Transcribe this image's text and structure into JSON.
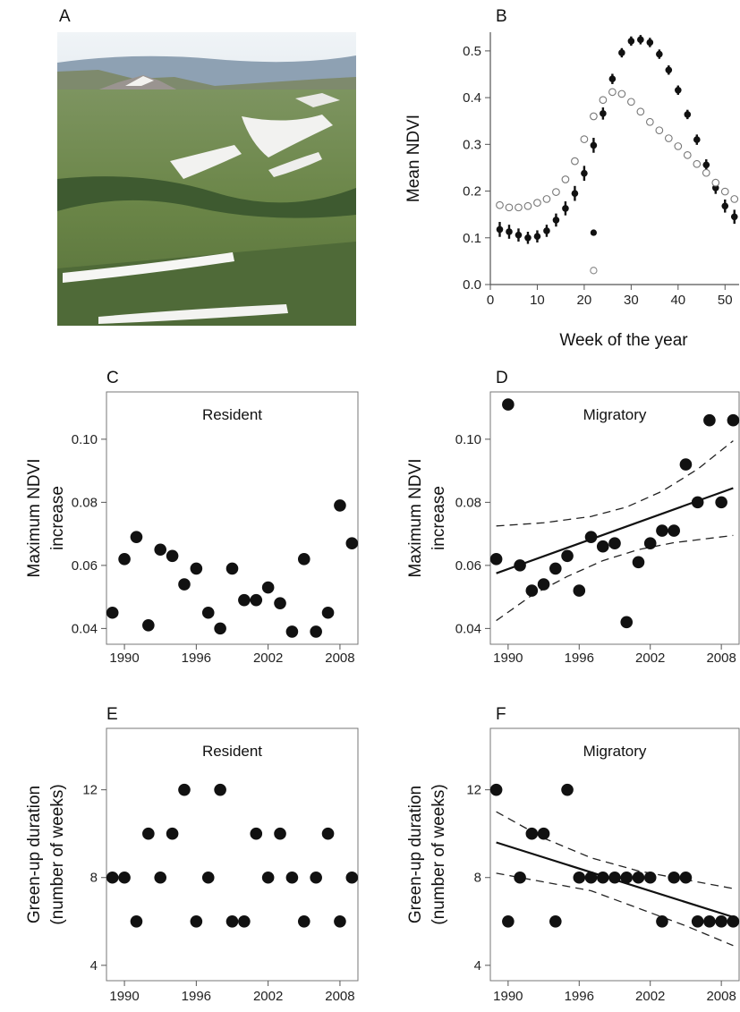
{
  "panel_labels": [
    "A",
    "B",
    "C",
    "D",
    "E",
    "F"
  ],
  "photo": {
    "description_icon": "landscape-photo",
    "colors": {
      "sky": "#cfdde6",
      "mountain": "#8e8a86",
      "meadow": "#6f8a4c",
      "forest": "#3f5a32",
      "snow": "#f4f4f2"
    }
  },
  "chart_data": [
    {
      "id": "B",
      "type": "scatter",
      "xlabel": "Week of the year",
      "ylabel": "Mean NDVI",
      "xlim": [
        0,
        53
      ],
      "ylim": [
        0,
        0.54
      ],
      "xticks": [
        "0",
        "10",
        "20",
        "30",
        "40",
        "50"
      ],
      "yticks": [
        "0.0",
        "0.1",
        "0.2",
        "0.3",
        "0.4",
        "0.5"
      ],
      "xtick_values": [
        0,
        10,
        20,
        30,
        40,
        50
      ],
      "ytick_values": [
        0,
        0.1,
        0.2,
        0.3,
        0.4,
        0.5
      ],
      "series": [
        {
          "style": "filled",
          "x": [
            2,
            4,
            6,
            8,
            10,
            12,
            14,
            16,
            18,
            20,
            22,
            24,
            26,
            28,
            30,
            32,
            34,
            36,
            38,
            40,
            42,
            44,
            46,
            48,
            50,
            52
          ],
          "y": [
            0.118,
            0.113,
            0.106,
            0.1,
            0.103,
            0.115,
            0.138,
            0.163,
            0.195,
            0.238,
            0.298,
            0.366,
            0.44,
            0.496,
            0.521,
            0.524,
            0.518,
            0.493,
            0.459,
            0.416,
            0.364,
            0.31,
            0.256,
            0.207,
            0.168,
            0.145
          ],
          "err": [
            0.016,
            0.015,
            0.014,
            0.013,
            0.013,
            0.013,
            0.014,
            0.015,
            0.016,
            0.016,
            0.016,
            0.013,
            0.011,
            0.01,
            0.01,
            0.01,
            0.01,
            0.01,
            0.01,
            0.01,
            0.01,
            0.011,
            0.012,
            0.013,
            0.014,
            0.015
          ]
        },
        {
          "style": "open",
          "x": [
            2,
            4,
            6,
            8,
            10,
            12,
            14,
            16,
            18,
            20,
            22,
            24,
            26,
            28,
            30,
            32,
            34,
            36,
            38,
            40,
            42,
            44,
            46,
            48,
            50,
            52
          ],
          "y": [
            0.17,
            0.165,
            0.165,
            0.168,
            0.175,
            0.183,
            0.198,
            0.225,
            0.264,
            0.311,
            0.36,
            0.395,
            0.412,
            0.408,
            0.391,
            0.37,
            0.348,
            0.33,
            0.313,
            0.296,
            0.277,
            0.258,
            0.239,
            0.218,
            0.199,
            0.183
          ],
          "err": [
            0.004,
            0.004,
            0.004,
            0.004,
            0.004,
            0.004,
            0.005,
            0.005,
            0.005,
            0.006,
            0.006,
            0.006,
            0.006,
            0.006,
            0.006,
            0.006,
            0.006,
            0.005,
            0.005,
            0.005,
            0.005,
            0.005,
            0.005,
            0.005,
            0.004,
            0.004
          ]
        }
      ],
      "outliers": [
        {
          "style": "filled",
          "x": 22,
          "y": 0.111
        },
        {
          "style": "open",
          "x": 22,
          "y": 0.03
        }
      ]
    },
    {
      "id": "C",
      "type": "scatter",
      "title": "Resident",
      "ylabel": [
        "Maximum NDVI",
        "increase"
      ],
      "xlim": [
        1988.5,
        2009.5
      ],
      "ylim": [
        0.035,
        0.115
      ],
      "xticks": [
        "1990",
        "1996",
        "2002",
        "2008"
      ],
      "yticks": [
        "0.04",
        "0.06",
        "0.08",
        "0.10"
      ],
      "xtick_values": [
        1990,
        1996,
        2002,
        2008
      ],
      "ytick_values": [
        0.04,
        0.06,
        0.08,
        0.1
      ],
      "x": [
        1989,
        1990,
        1991,
        1992,
        1993,
        1994,
        1995,
        1996,
        1997,
        1998,
        1999,
        2000,
        2001,
        2002,
        2003,
        2004,
        2005,
        2006,
        2007,
        2008,
        2009
      ],
      "y": [
        0.045,
        0.062,
        0.069,
        0.041,
        0.065,
        0.063,
        0.054,
        0.059,
        0.045,
        0.04,
        0.059,
        0.049,
        0.049,
        0.053,
        0.048,
        0.039,
        0.062,
        0.039,
        0.045,
        0.079,
        0.067
      ]
    },
    {
      "id": "D",
      "type": "scatter",
      "title": "Migratory",
      "ylabel": [
        "Maximum NDVI",
        "increase"
      ],
      "xlim": [
        1988.5,
        2009.5
      ],
      "ylim": [
        0.035,
        0.115
      ],
      "xticks": [
        "1990",
        "1996",
        "2002",
        "2008"
      ],
      "yticks": [
        "0.04",
        "0.06",
        "0.08",
        "0.10"
      ],
      "xtick_values": [
        1990,
        1996,
        2002,
        2008
      ],
      "ytick_values": [
        0.04,
        0.06,
        0.08,
        0.1
      ],
      "x": [
        1989,
        1990,
        1991,
        1992,
        1993,
        1994,
        1995,
        1996,
        1997,
        1998,
        1999,
        2000,
        2001,
        2002,
        2003,
        2004,
        2005,
        2006,
        2007,
        2008,
        2009
      ],
      "y": [
        0.062,
        0.111,
        0.06,
        0.052,
        0.054,
        0.059,
        0.063,
        0.052,
        0.069,
        0.066,
        0.067,
        0.042,
        0.061,
        0.067,
        0.071,
        0.071,
        0.092,
        0.08,
        0.106,
        0.08,
        0.106
      ],
      "fit": {
        "x": [
          1989,
          2009
        ],
        "y": [
          0.0575,
          0.0845
        ]
      },
      "ci_upper": {
        "x": [
          1989,
          1993,
          1997,
          2000,
          2003,
          2006,
          2009
        ],
        "y": [
          0.0725,
          0.0735,
          0.0755,
          0.0785,
          0.0835,
          0.0905,
          0.0995
        ]
      },
      "ci_lower": {
        "x": [
          1989,
          1992,
          1995,
          1998,
          2001,
          2004,
          2009
        ],
        "y": [
          0.0425,
          0.0505,
          0.0565,
          0.0615,
          0.065,
          0.0672,
          0.0695
        ]
      }
    },
    {
      "id": "E",
      "type": "scatter",
      "title": "Resident",
      "ylabel": [
        "Green-up duration",
        "(number of weeks)"
      ],
      "xlim": [
        1988.5,
        2009.5
      ],
      "ylim": [
        3.3,
        14.8
      ],
      "xticks": [
        "1990",
        "1996",
        "2002",
        "2008"
      ],
      "yticks": [
        "4",
        "8",
        "12"
      ],
      "xtick_values": [
        1990,
        1996,
        2002,
        2008
      ],
      "ytick_values": [
        4,
        8,
        12
      ],
      "x": [
        1989,
        1990,
        1991,
        1992,
        1993,
        1994,
        1995,
        1996,
        1997,
        1998,
        1999,
        2000,
        2001,
        2002,
        2003,
        2004,
        2005,
        2006,
        2007,
        2008,
        2009
      ],
      "y": [
        8,
        8,
        6,
        10,
        8,
        10,
        12,
        6,
        8,
        12,
        6,
        6,
        10,
        8,
        10,
        8,
        6,
        8,
        10,
        6,
        8
      ]
    },
    {
      "id": "F",
      "type": "scatter",
      "title": "Migratory",
      "ylabel": [
        "Green-up duration",
        "(number of weeks)"
      ],
      "xlim": [
        1988.5,
        2009.5
      ],
      "ylim": [
        3.3,
        14.8
      ],
      "xticks": [
        "1990",
        "1996",
        "2002",
        "2008"
      ],
      "yticks": [
        "4",
        "8",
        "12"
      ],
      "xtick_values": [
        1990,
        1996,
        2002,
        2008
      ],
      "ytick_values": [
        4,
        8,
        12
      ],
      "x": [
        1989,
        1990,
        1991,
        1992,
        1993,
        1994,
        1995,
        1996,
        1997,
        1998,
        1999,
        2000,
        2001,
        2002,
        2003,
        2004,
        2005,
        2006,
        2007,
        2008,
        2009
      ],
      "y": [
        12,
        6,
        8,
        10,
        10,
        6,
        12,
        8,
        8,
        8,
        8,
        8,
        8,
        8,
        6,
        8,
        8,
        6,
        6,
        6,
        6
      ],
      "fit": {
        "x": [
          1989,
          2009
        ],
        "y": [
          9.6,
          6.2
        ]
      },
      "ci_upper": {
        "x": [
          1989,
          1993,
          1997,
          2001,
          2005,
          2009
        ],
        "y": [
          11.0,
          9.8,
          8.9,
          8.3,
          7.9,
          7.5
        ]
      },
      "ci_lower": {
        "x": [
          1989,
          1993,
          1997,
          2001,
          2005,
          2009
        ],
        "y": [
          8.2,
          7.8,
          7.4,
          6.6,
          5.8,
          4.9
        ]
      }
    }
  ]
}
